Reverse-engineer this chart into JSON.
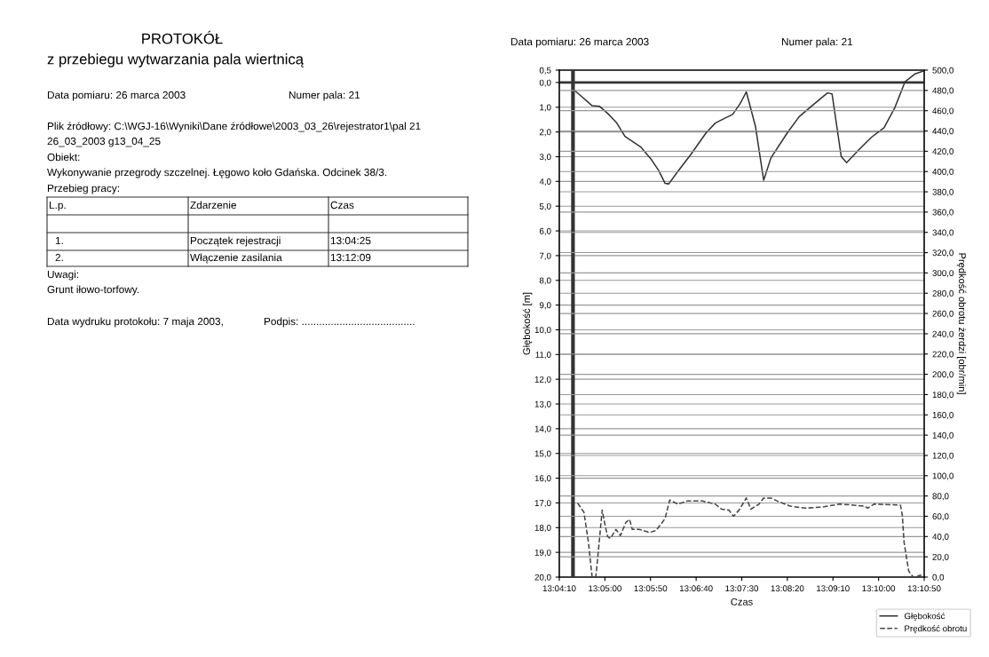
{
  "chart_data": {
    "type": "line",
    "title": "PROTOKÓŁ",
    "subtitle": "z przebiegu wytwarzania pala wiertnicą",
    "xlabel": "Czas",
    "ylabel": "Głębokość [m]",
    "y2label": "Prędkość obrotu żerdzi [obr/min]",
    "annotations": [
      "Data pomiaru: 26 marca 2003",
      "Numer pala: 21",
      "Plik źródłowy: C:\\WGJ-16\\Wyniki\\Dane źródłowe\\2003_03_26\\rejestrator1\\pal 21",
      "26_03_2003 g13_04_25",
      "Obiekt:",
      "Wykonywanie przegrody szczelnej. Łęgowo koło Gdańska. Odcinek 38/3.",
      "Przebieg pracy:",
      "L.p.",
      "Zdarzenie",
      "Czas",
      "1.",
      "Początek rejestracji",
      "13:04:25",
      "2.",
      "Włączenie zasilania",
      "13:12:09",
      "Uwagi:",
      "Grunt iłowo-torfowy.",
      "Data wydruku protokołu: 7 maja 2003,",
      "Podpis: .......................................",
      "Data pomiaru: 26 marca 2003",
      "Numer pala: 21"
    ],
    "series": [
      {
        "name": "Głębokość",
        "color": "#333333",
        "line_style": "solid",
        "x": [
          13.07389,
          13.07611,
          13.07944,
          13.08167,
          13.08472,
          13.08694,
          13.08944,
          13.09417,
          13.0975,
          13.09972,
          13.10167,
          13.10278,
          13.105,
          13.10944,
          13.11417,
          13.11694,
          13.11972,
          13.12222,
          13.12444,
          13.12639,
          13.12917,
          13.13167,
          13.13389,
          13.13889,
          13.1425,
          13.14639,
          13.15111,
          13.1525,
          13.15528,
          13.15694,
          13.16056,
          13.16444,
          13.16833,
          13.17167,
          13.17472,
          13.17778,
          13.1805
        ],
        "values": [
          0.3,
          0.55,
          0.94,
          0.96,
          1.32,
          1.64,
          2.18,
          2.6,
          3.12,
          3.56,
          4.08,
          4.1,
          3.69,
          2.92,
          2.03,
          1.64,
          1.45,
          1.29,
          0.87,
          0.38,
          1.77,
          3.95,
          3.05,
          2.03,
          1.38,
          0.94,
          0.42,
          0.46,
          2.99,
          3.24,
          2.73,
          2.22,
          1.83,
          1.0,
          -0.03,
          -0.35,
          -0.47
        ]
      },
      {
        "name": "Prędkość obrotu",
        "color": "#444444",
        "line_style": "dashed",
        "axis": "y2",
        "x": [
          13.075,
          13.07694,
          13.07833,
          13.07944,
          13.08056,
          13.08167,
          13.0825,
          13.08333,
          13.08417,
          13.085,
          13.08667,
          13.08806,
          13.08972,
          13.09083,
          13.09167,
          13.09361,
          13.095,
          13.09694,
          13.09889,
          13.10083,
          13.10167,
          13.10306,
          13.10556,
          13.10833,
          13.11306,
          13.11694,
          13.11889,
          13.12111,
          13.1225,
          13.12417,
          13.12639,
          13.12778,
          13.13028,
          13.13167,
          13.13389,
          13.13583,
          13.13972,
          13.14444,
          13.14917,
          13.155,
          13.1625,
          13.16333,
          13.16528,
          13.17333,
          13.17389,
          13.17444,
          13.17583,
          13.17722,
          13.17972
        ],
        "values": [
          73,
          64,
          34,
          0,
          0,
          37,
          66,
          52,
          40,
          38,
          47,
          41,
          54,
          57,
          47,
          47,
          46,
          44,
          46,
          54,
          58,
          76,
          72,
          75,
          75,
          72,
          67,
          66,
          60,
          66,
          78,
          67,
          72,
          78,
          78,
          75,
          70,
          68,
          69,
          72,
          70,
          68,
          72,
          71,
          61,
          34,
          6,
          0,
          2
        ]
      }
    ],
    "xlim": [
      13.069444,
      13.180556
    ],
    "xticks": [
      {
        "value": 13.069444,
        "label": "13:04:10"
      },
      {
        "value": 13.083333,
        "label": "13:05:00"
      },
      {
        "value": 13.097222,
        "label": "13:05:50"
      },
      {
        "value": 13.111111,
        "label": "13:06:40"
      },
      {
        "value": 13.125,
        "label": "13:07:30"
      },
      {
        "value": 13.138889,
        "label": "13:08:20"
      },
      {
        "value": 13.152778,
        "label": "13:09:10"
      },
      {
        "value": 13.166667,
        "label": "13:10:00"
      },
      {
        "value": 13.180556,
        "label": "13:10:50"
      }
    ],
    "ylim": [
      20,
      -0.5
    ],
    "yticks": [
      {
        "value": -0.5,
        "label": "0,5"
      },
      {
        "value": 0,
        "label": "0,0"
      },
      {
        "value": 1,
        "label": "1,0"
      },
      {
        "value": 2,
        "label": "2,0"
      },
      {
        "value": 3,
        "label": "3,0"
      },
      {
        "value": 4,
        "label": "4,0"
      },
      {
        "value": 5,
        "label": "5,0"
      },
      {
        "value": 6,
        "label": "6,0"
      },
      {
        "value": 7,
        "label": "7,0"
      },
      {
        "value": 8,
        "label": "8,0"
      },
      {
        "value": 9,
        "label": "9,0"
      },
      {
        "value": 10,
        "label": "10,0"
      },
      {
        "value": 11,
        "label": "11,0"
      },
      {
        "value": 12,
        "label": "12,0"
      },
      {
        "value": 13,
        "label": "13,0"
      },
      {
        "value": 14,
        "label": "14,0"
      },
      {
        "value": 15,
        "label": "15,0"
      },
      {
        "value": 16,
        "label": "16,0"
      },
      {
        "value": 17,
        "label": "17,0"
      },
      {
        "value": 18,
        "label": "18,0"
      },
      {
        "value": 19,
        "label": "19,0"
      },
      {
        "value": 20,
        "label": "20,0"
      }
    ],
    "y2lim": [
      0,
      500
    ],
    "y2ticks": [
      {
        "value": 0,
        "label": "0,0"
      },
      {
        "value": 20,
        "label": "20,0"
      },
      {
        "value": 40,
        "label": "40,0"
      },
      {
        "value": 60,
        "label": "60,0"
      },
      {
        "value": 80,
        "label": "80,0"
      },
      {
        "value": 100,
        "label": "100,0"
      },
      {
        "value": 120,
        "label": "120,0"
      },
      {
        "value": 140,
        "label": "140,0"
      },
      {
        "value": 160,
        "label": "160,0"
      },
      {
        "value": 180,
        "label": "180,0"
      },
      {
        "value": 200,
        "label": "200,0"
      },
      {
        "value": 220,
        "label": "220,0"
      },
      {
        "value": 240,
        "label": "240,0"
      },
      {
        "value": 260,
        "label": "260,0"
      },
      {
        "value": 280,
        "label": "280,0"
      },
      {
        "value": 300,
        "label": "300,0"
      },
      {
        "value": 320,
        "label": "320,0"
      },
      {
        "value": 340,
        "label": "340,0"
      },
      {
        "value": 360,
        "label": "360,0"
      },
      {
        "value": 380,
        "label": "380,0"
      },
      {
        "value": 400,
        "label": "400,0"
      },
      {
        "value": 420,
        "label": "420,0"
      },
      {
        "value": 440,
        "label": "440,0"
      },
      {
        "value": 460,
        "label": "460,0"
      },
      {
        "value": 480,
        "label": "480,0"
      },
      {
        "value": 500,
        "label": "500,0"
      }
    ],
    "ref_lines": [
      {
        "axis": "x",
        "value": 13.07361,
        "color": "#333333"
      },
      {
        "axis": "y",
        "value": 0,
        "color": "#333333"
      }
    ],
    "grid": "y",
    "legend": "bottom right",
    "marker": "none"
  }
}
